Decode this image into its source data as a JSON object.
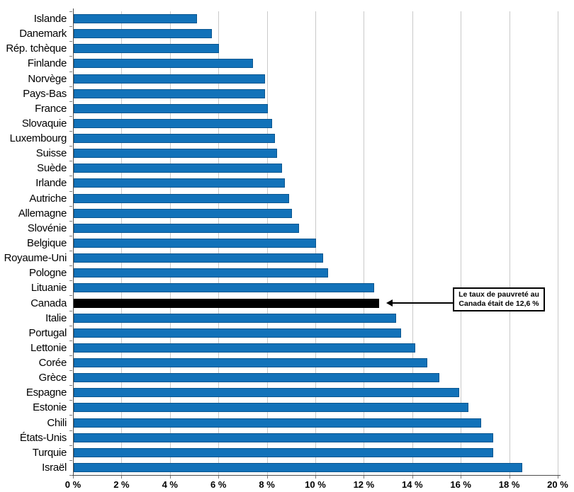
{
  "chart_data": {
    "type": "bar",
    "orientation": "horizontal",
    "title": "",
    "xlabel": "",
    "ylabel": "",
    "xlim": [
      0,
      20
    ],
    "x_tick_step": 2,
    "x_tick_suffix": " %",
    "x_ticks": [
      "0 %",
      "2 %",
      "4 %",
      "6 %",
      "8 %",
      "10 %",
      "12 %",
      "14 %",
      "16 %",
      "18 %",
      "20 %"
    ],
    "grid": "vertical",
    "legend": "none",
    "bar_color": "#1272b9",
    "highlight_color": "#000000",
    "highlight_category": "Canada",
    "categories": [
      "Islande",
      "Danemark",
      "Rép. tchèque",
      "Finlande",
      "Norvège",
      "Pays-Bas",
      "France",
      "Slovaquie",
      "Luxembourg",
      "Suisse",
      "Suède",
      "Irlande",
      "Autriche",
      "Allemagne",
      "Slovénie",
      "Belgique",
      "Royaume-Uni",
      "Pologne",
      "Lituanie",
      "Canada",
      "Italie",
      "Portugal",
      "Lettonie",
      "Corée",
      "Grèce",
      "Espagne",
      "Estonie",
      "Chili",
      "États-Unis",
      "Turquie",
      "Israël"
    ],
    "values": [
      5.1,
      5.7,
      6.0,
      7.4,
      7.9,
      7.9,
      8.0,
      8.2,
      8.3,
      8.4,
      8.6,
      8.7,
      8.9,
      9.0,
      9.3,
      10.0,
      10.3,
      10.5,
      12.4,
      12.6,
      13.3,
      13.5,
      14.1,
      14.6,
      15.1,
      15.9,
      16.3,
      16.8,
      17.3,
      17.3,
      18.5
    ],
    "annotation": {
      "line1": "Le taux de pauvreté au",
      "line2": "Canada était de 12,6 %",
      "target_category": "Canada",
      "arrow": "left-pointing"
    }
  }
}
